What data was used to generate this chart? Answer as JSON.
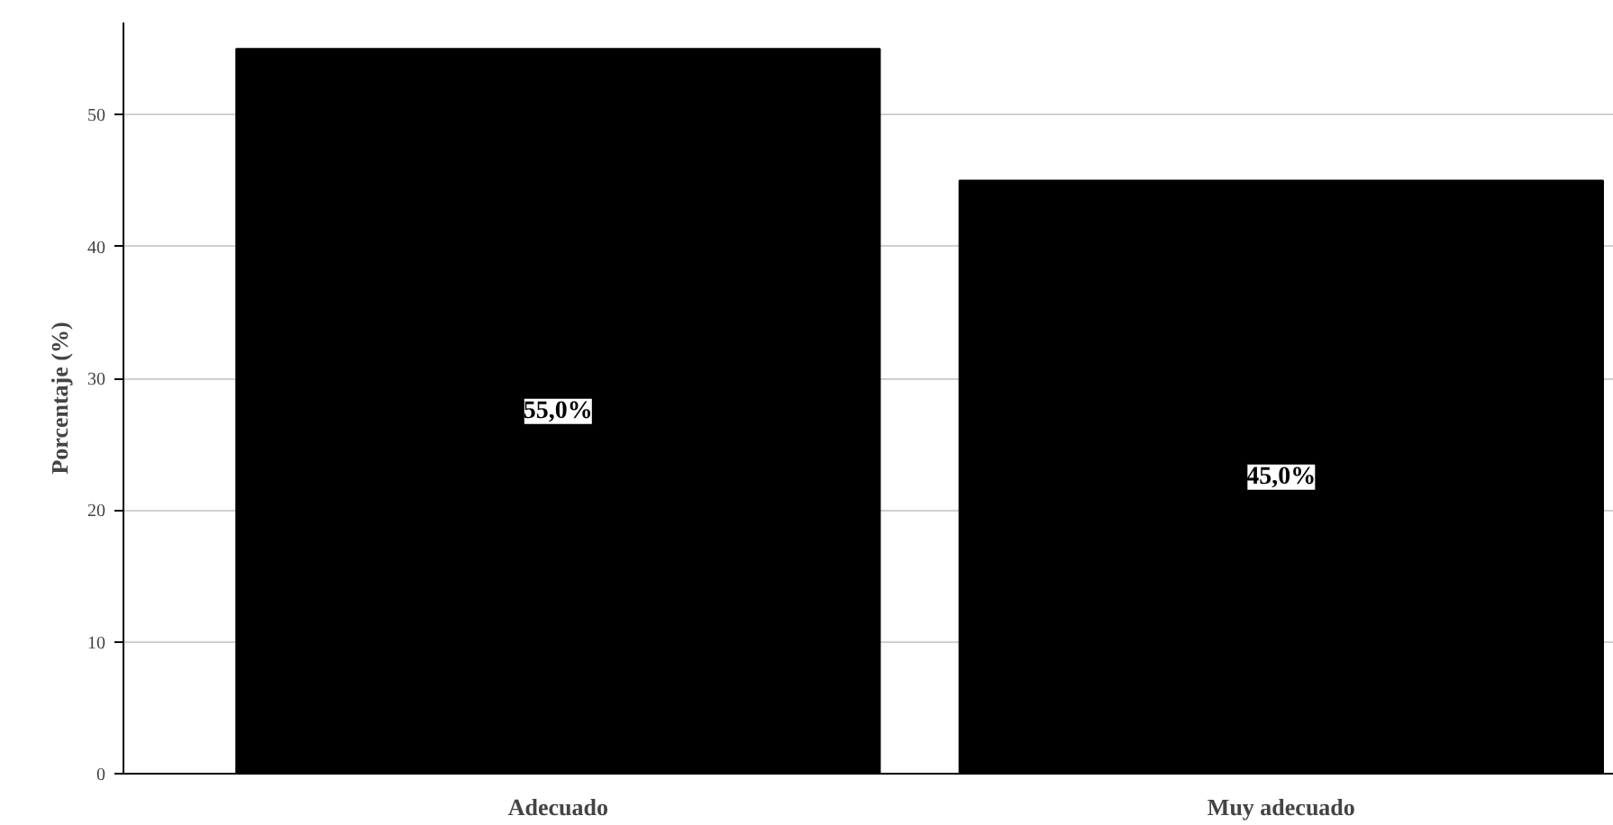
{
  "chart_data": {
    "type": "bar",
    "categories": [
      "Adecuado",
      "Muy adecuado"
    ],
    "values": [
      55.0,
      45.0
    ],
    "value_labels": [
      "55,0%",
      "45,0%"
    ],
    "color": "#000000",
    "ylabel": "Porcentaje (%)",
    "ylim": [
      0,
      57
    ],
    "yticks": [
      0,
      10,
      20,
      30,
      40,
      50
    ],
    "grid": "y"
  }
}
